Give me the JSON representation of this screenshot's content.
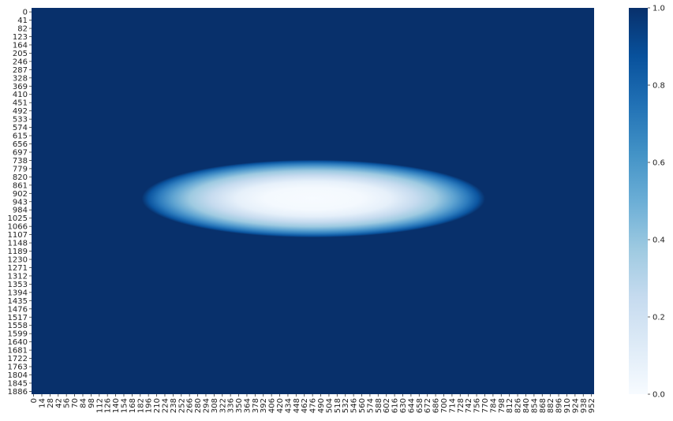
{
  "chart_data": {
    "type": "heatmap",
    "title": "",
    "xlabel": "",
    "ylabel": "",
    "x_tick_labels": [
      "0",
      "14",
      "28",
      "42",
      "56",
      "70",
      "84",
      "98",
      "112",
      "126",
      "140",
      "154",
      "168",
      "182",
      "196",
      "210",
      "224",
      "238",
      "252",
      "266",
      "280",
      "294",
      "308",
      "322",
      "336",
      "350",
      "364",
      "378",
      "392",
      "406",
      "420",
      "434",
      "448",
      "462",
      "476",
      "490",
      "504",
      "518",
      "532",
      "546",
      "560",
      "574",
      "588",
      "602",
      "616",
      "630",
      "644",
      "658",
      "672",
      "686",
      "700",
      "714",
      "728",
      "742",
      "756",
      "770",
      "784",
      "798",
      "812",
      "826",
      "840",
      "854",
      "868",
      "882",
      "896",
      "910",
      "924",
      "938",
      "952"
    ],
    "y_tick_labels": [
      "0",
      "41",
      "82",
      "123",
      "164",
      "205",
      "246",
      "287",
      "328",
      "369",
      "410",
      "451",
      "492",
      "533",
      "574",
      "615",
      "656",
      "697",
      "738",
      "779",
      "820",
      "861",
      "902",
      "943",
      "984",
      "1025",
      "1066",
      "1107",
      "1148",
      "1189",
      "1230",
      "1271",
      "1312",
      "1353",
      "1394",
      "1435",
      "1476",
      "1517",
      "1558",
      "1599",
      "1640",
      "1681",
      "1722",
      "1763",
      "1804",
      "1845",
      "1886"
    ],
    "x_range": [
      0,
      960
    ],
    "y_range": [
      0,
      1920
    ],
    "colormap": "Blues",
    "vmin": 0.0,
    "vmax": 1.0,
    "colorbar_ticks": [
      "0.0",
      "0.2",
      "0.4",
      "0.6",
      "0.8",
      "1.0"
    ],
    "field": {
      "description_of_values": "value ~0 at center, rising to 1.0 outside an ellipse",
      "center": [
        481,
        948
      ],
      "semi_axes": [
        293,
        193
      ],
      "background_value": 1.0,
      "center_value": 0.0
    }
  },
  "colors": {
    "low": "#f7fbff",
    "high": "#08306b"
  }
}
